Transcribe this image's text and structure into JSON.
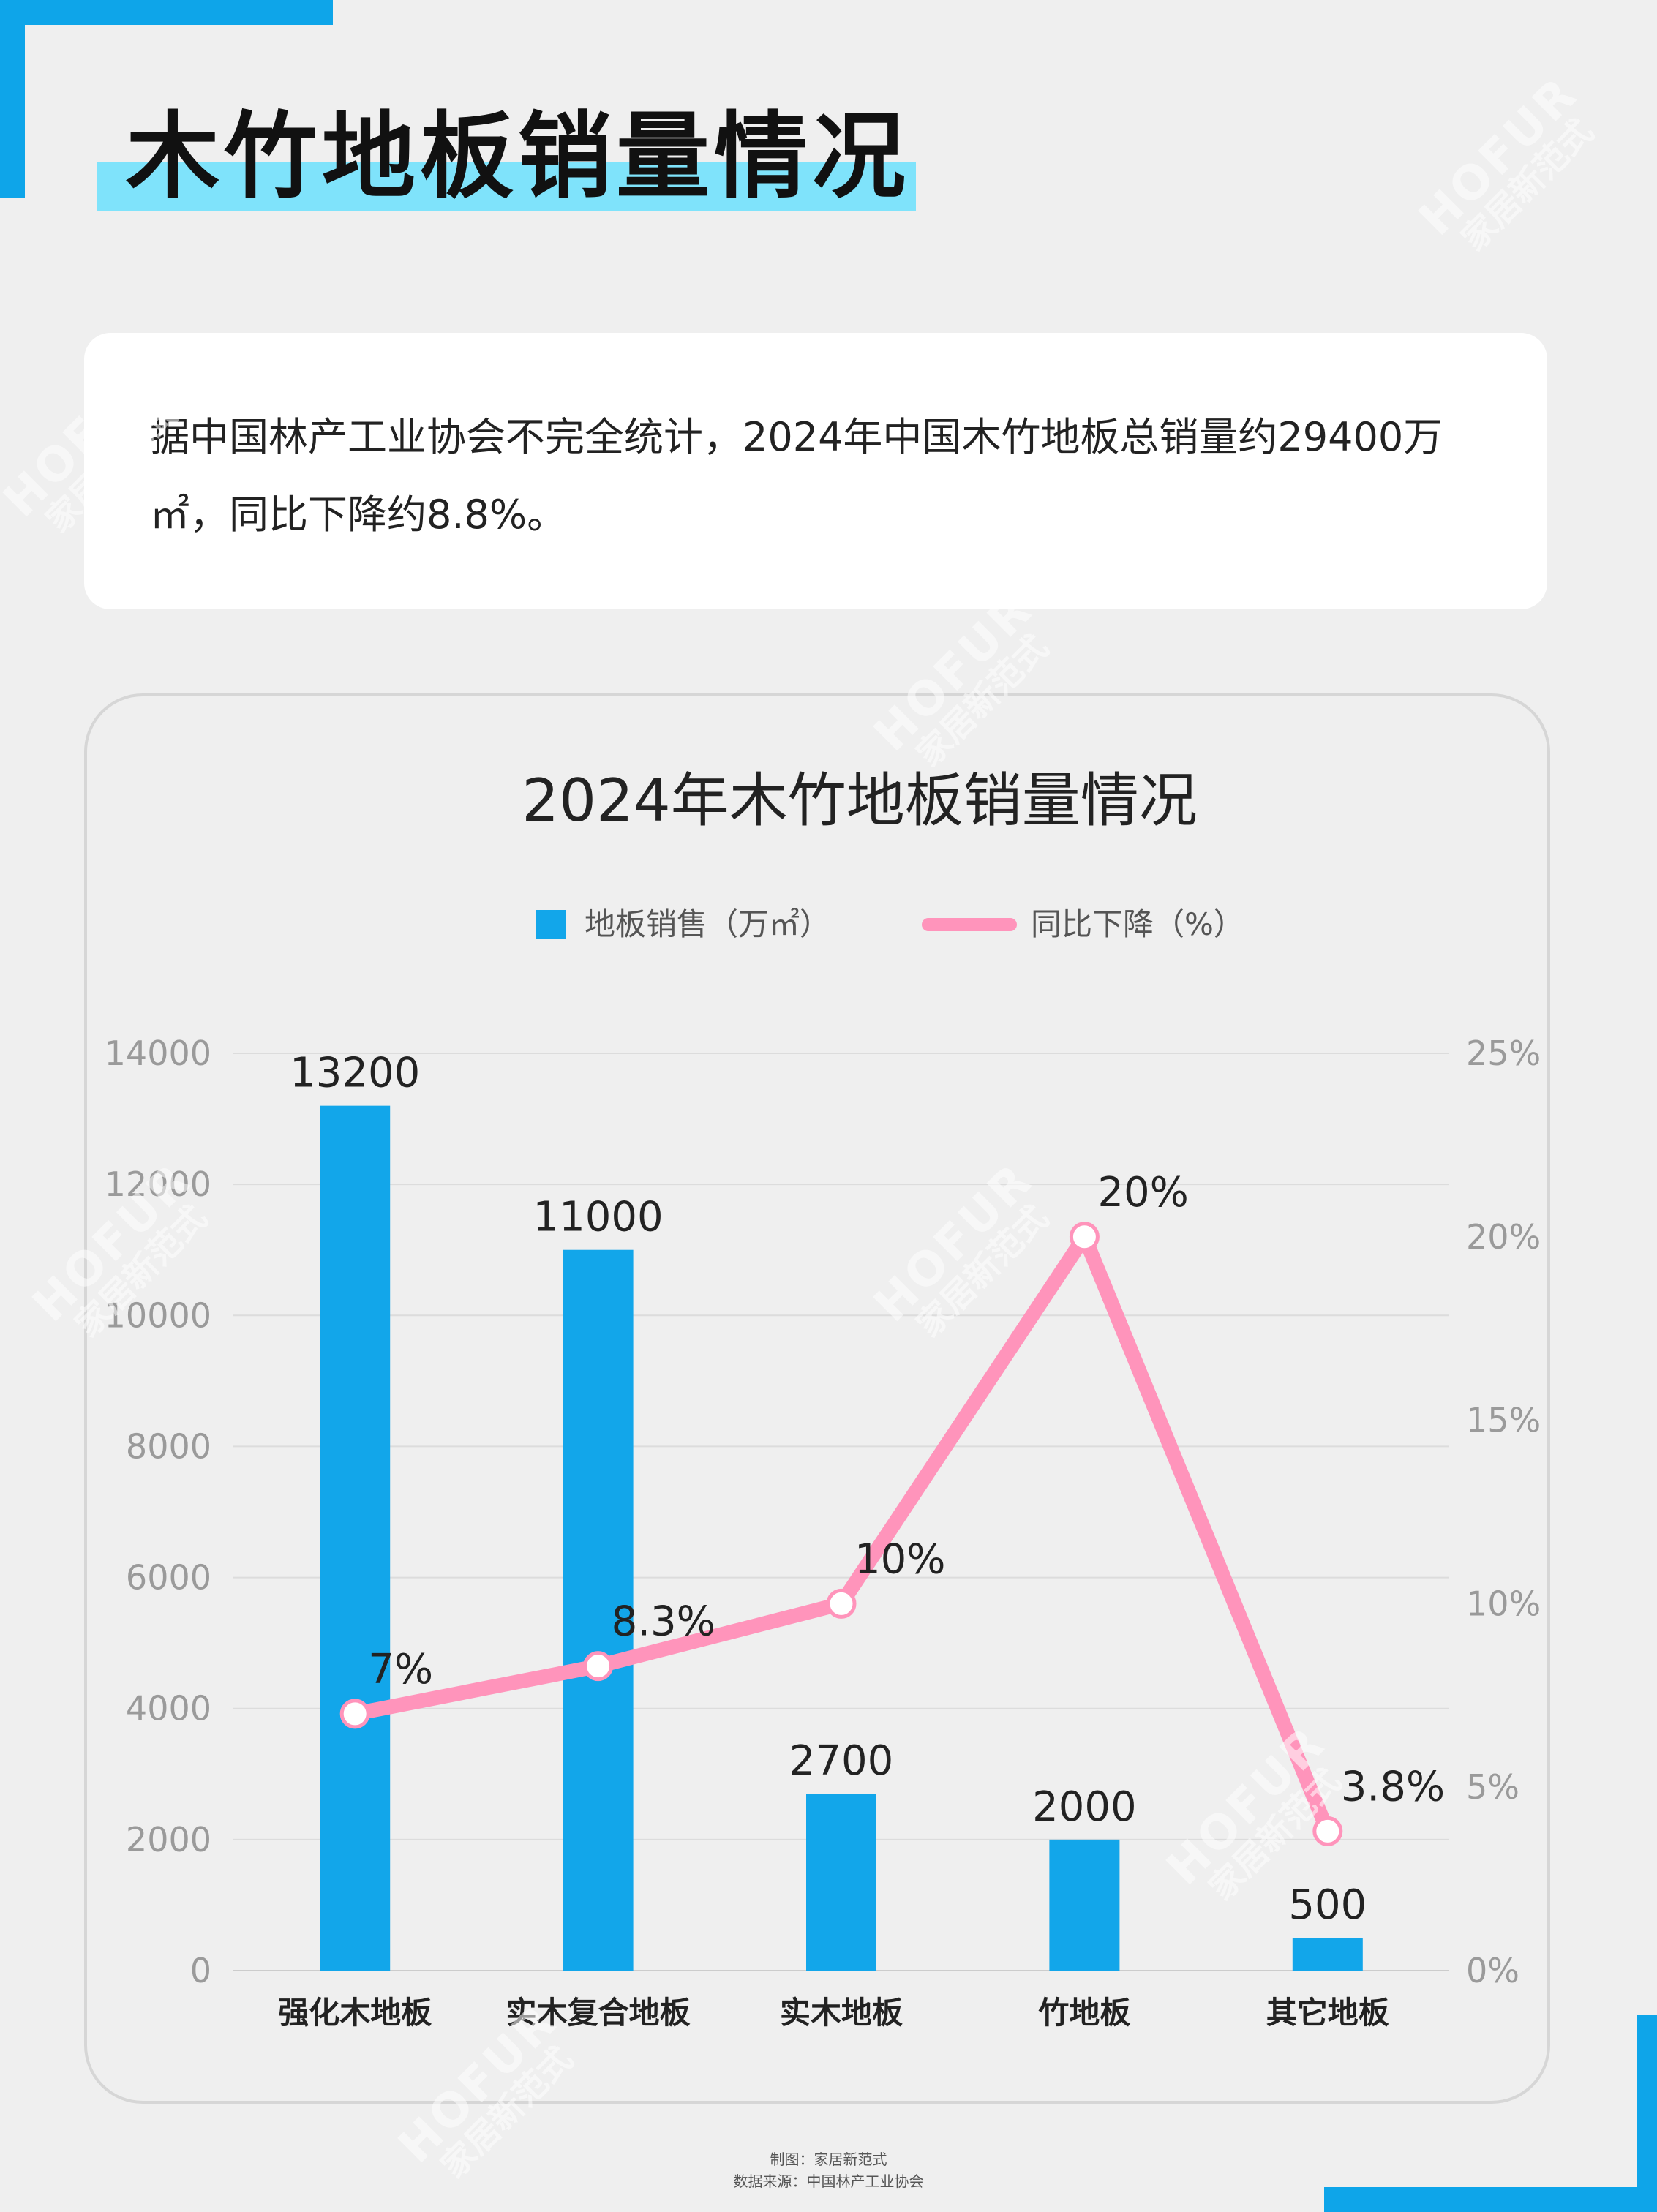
{
  "page": {
    "title": "木竹地板销量情况",
    "summary": "据中国林产工业协会不完全统计，2024年中国木竹地板总销量约29400万㎡，同比下降约8.8%。",
    "credit_line1": "制图：家居新范式",
    "credit_line2": "数据来源：中国林产工业协会",
    "watermark_brand": "HOFUR",
    "watermark_sub": "家居新范式"
  },
  "colors": {
    "accent": "#0ea5e9",
    "title_highlight": "#7fe3fb",
    "bar": "#12a6ea",
    "line": "#ff94bb",
    "background": "#efefef"
  },
  "chart_data": {
    "type": "bar",
    "title": "2024年木竹地板销量情况",
    "categories": [
      "强化木地板",
      "实木复合地板",
      "实木地板",
      "竹地板",
      "其它地板"
    ],
    "series": [
      {
        "name": "地板销售（万㎡）",
        "type": "bar",
        "axis": "left",
        "values": [
          13200,
          11000,
          2700,
          2000,
          500
        ],
        "labels": [
          "13200",
          "11000",
          "2700",
          "2000",
          "500"
        ]
      },
      {
        "name": "同比下降（%）",
        "type": "line",
        "axis": "right",
        "values": [
          7,
          8.3,
          10,
          20,
          3.8
        ],
        "labels": [
          "7%",
          "8.3%",
          "10%",
          "20%",
          "3.8%"
        ]
      }
    ],
    "y_left": {
      "min": 0,
      "max": 14000,
      "ticks": [
        "0",
        "2000",
        "4000",
        "6000",
        "8000",
        "10000",
        "12000",
        "14000"
      ]
    },
    "y_right": {
      "min": 0,
      "max": 25,
      "ticks": [
        "0%",
        "5%",
        "10%",
        "15%",
        "20%",
        "25%"
      ]
    },
    "grid": true,
    "legend": "top"
  }
}
